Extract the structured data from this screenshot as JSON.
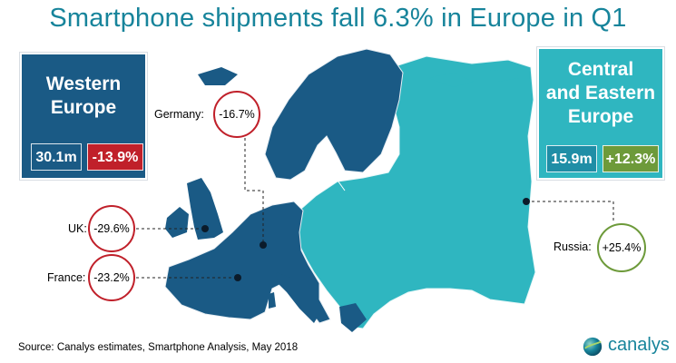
{
  "title": "Smartphone shipments fall 6.3% in Europe in Q1",
  "regions": {
    "western": {
      "name_line1": "Western",
      "name_line2": "Europe",
      "shipments": "30.1m",
      "change": "-13.9%",
      "color": "#1a5a85",
      "change_color": "#c0202a"
    },
    "central_eastern": {
      "name_line1": "Central",
      "name_line2": "and Eastern",
      "name_line3": "Europe",
      "shipments": "15.9m",
      "change": "+12.3%",
      "color": "#2fb6c0",
      "change_color": "#6d9a3a"
    }
  },
  "callouts": [
    {
      "country": "Germany:",
      "value": "-16.7%",
      "color": "#c0202a"
    },
    {
      "country": "UK:",
      "value": "-29.6%",
      "color": "#c0202a"
    },
    {
      "country": "France:",
      "value": "-23.2%",
      "color": "#c0202a"
    },
    {
      "country": "Russia:",
      "value": "+25.4%",
      "color": "#6d9a3a"
    }
  ],
  "source": "Source: Canalys estimates, Smartphone Analysis, May 2018",
  "logo": {
    "text": "canalys",
    "icon": "globe-icon",
    "color": "#17849b"
  }
}
